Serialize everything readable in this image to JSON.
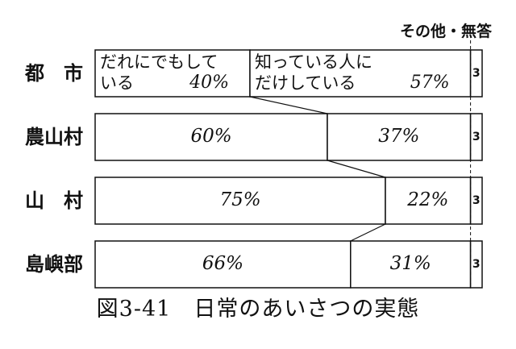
{
  "chart_data": {
    "type": "stacked-bar",
    "title": "図3-41　日常のあいさつの実態",
    "categories": [
      "都　市",
      "農山村",
      "山　村",
      "島嶼部"
    ],
    "series": [
      {
        "name": "だれにでもしている",
        "color": "#ffffff",
        "values": [
          40,
          60,
          75,
          66
        ],
        "value_labels": [
          "40%",
          "60%",
          "75%",
          "66%"
        ]
      },
      {
        "name": "知っている人にだけしている",
        "color": "#ffffff",
        "values": [
          57,
          37,
          22,
          31
        ],
        "value_labels": [
          "57%",
          "37%",
          "22%",
          "31%"
        ]
      },
      {
        "name": "その他・無答",
        "color": "#ffffff",
        "values": [
          3,
          3,
          3,
          3
        ]
      }
    ]
  }
}
